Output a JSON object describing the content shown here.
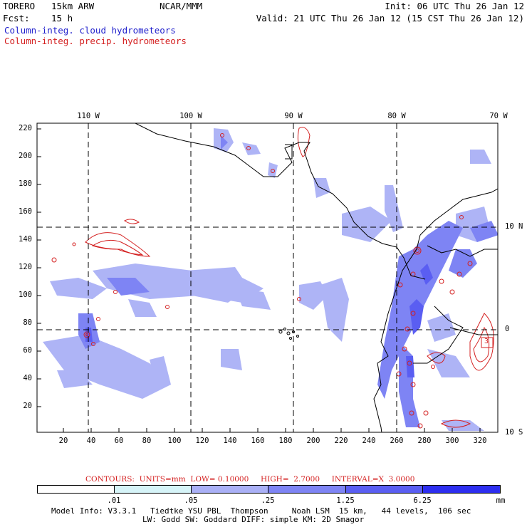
{
  "header": {
    "model": "TORERO",
    "resolution": "15km ARW",
    "org": "NCAR/MMM",
    "init": "Init: 06 UTC Thu 26 Jan 12",
    "fcst_label": "Fcst:",
    "fcst_value": "15 h",
    "valid": "Valid: 21 UTC Thu 26 Jan 12 (15 CST Thu 26 Jan 12)",
    "field1": "Column-integ. cloud hydrometeors",
    "field2": "Column-integ. precip. hydrometeors"
  },
  "colors": {
    "cloud_field": "#1f1fcc",
    "precip_field": "#d42020",
    "land_outline": "#000000"
  },
  "map": {
    "top_labels": [
      "110 W",
      "100 W",
      "90 W",
      "80 W",
      "70 W"
    ],
    "right_labels": [
      "10 N",
      "0",
      "10 S"
    ],
    "y_ticks": [
      "220",
      "200",
      "180",
      "160",
      "140",
      "120",
      "100",
      "80",
      "60",
      "40",
      "20"
    ],
    "x_ticks": [
      "20",
      "40",
      "60",
      "80",
      "100",
      "120",
      "140",
      "160",
      "180",
      "200",
      "220",
      "240",
      "260",
      "280",
      "300",
      "320"
    ],
    "contour_box_label": "3"
  },
  "contours": {
    "label": "CONTOURS:  UNITS=mm  LOW= 0.10000     HIGH=  2.7000     INTERVAL=X  3.0000"
  },
  "colorbar": {
    "labels": [
      ".01",
      ".05",
      ".25",
      "1.25",
      "6.25"
    ],
    "unit": "mm",
    "colors": [
      "#ffffff",
      "#d6f4f8",
      "#aab0f6",
      "#7e84f4",
      "#5a5ef2",
      "#2d2ef0"
    ]
  },
  "footer": {
    "line1": "Model Info: V3.3.1   Tiedtke YSU PBL  Thompson     Noah LSM  15 km,   44 levels,  106 sec",
    "line2": "LW: Godd SW: Goddard DIFF: simple KM: 2D Smagor"
  }
}
